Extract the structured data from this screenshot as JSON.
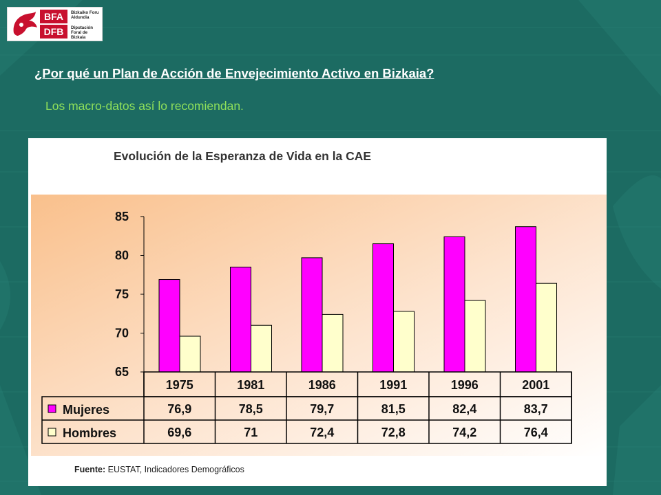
{
  "logo": {
    "abbr_top": "BFA",
    "abbr_bottom": "DFB",
    "name_line1": "Bizkaiko Foru",
    "name_line2": "Aldundia",
    "name_line3": "Diputación",
    "name_line4": "Foral de Bizkaia"
  },
  "slide": {
    "title": "¿Por qué un Plan de Acción de Envejecimiento Activo en Bizkaia?",
    "subtitle": "Los macro-datos así lo recomiendan."
  },
  "colors": {
    "background": "#1c6b62",
    "subtitle": "#8fe05a",
    "mujeres": "#ff00ff",
    "hombres": "#ffffcc"
  },
  "source": {
    "label": "Fuente:",
    "text": "EUSTAT, Indicadores Demográficos"
  },
  "chart_data": {
    "type": "bar",
    "title": "Evolución de la Esperanza de Vida en la CAE",
    "categories": [
      "1975",
      "1981",
      "1986",
      "1991",
      "1996",
      "2001"
    ],
    "series": [
      {
        "name": "Mujeres",
        "values": [
          76.9,
          78.5,
          79.7,
          81.5,
          82.4,
          83.7
        ],
        "labels": [
          "76,9",
          "78,5",
          "79,7",
          "81,5",
          "82,4",
          "83,7"
        ],
        "color": "#ff00ff"
      },
      {
        "name": "Hombres",
        "values": [
          69.6,
          71,
          72.4,
          72.8,
          74.2,
          76.4
        ],
        "labels": [
          "69,6",
          "71",
          "72,4",
          "72,8",
          "74,2",
          "76,4"
        ],
        "color": "#ffffcc"
      }
    ],
    "yticks": [
      "85",
      "80",
      "75",
      "70",
      "65"
    ],
    "ylim": [
      65,
      85
    ],
    "grid": false,
    "legend": "data-table"
  }
}
